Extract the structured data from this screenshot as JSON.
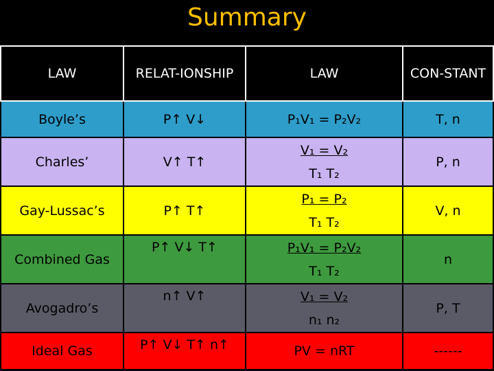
{
  "title": "Summary",
  "headers": [
    "LAW",
    "RELAT-IONSHIP",
    "LAW",
    "CON-STANT"
  ],
  "rows": [
    {
      "law": "Boyle’s",
      "relationship": "P↑ V↓",
      "equation": "P₁V₁ = P₂V₂",
      "constant": "T, n"
    },
    {
      "law": "Charles’",
      "relationship": "V↑ T↑",
      "equation_num": "V₁ = V₂",
      "equation_den": "T₁   T₂",
      "constant": "P, n"
    },
    {
      "law": "Gay-Lussac’s",
      "relationship": "P↑ T↑",
      "equation_num": "P₁ = P₂",
      "equation_den": "T₁   T₂",
      "constant": "V, n"
    },
    {
      "law": "Combined Gas",
      "relationship": "P↑ V↓ T↑",
      "equation_num": "P₁V₁ = P₂V₂",
      "equation_den": "T₁   T₂",
      "constant": "n"
    },
    {
      "law": "Avogadro’s",
      "relationship": "n↑ V↑",
      "equation_num": "V₁ = V₂",
      "equation_den": "n₁   n₂",
      "constant": "P, T"
    },
    {
      "law": "Ideal Gas",
      "relationship": "P↑ V↓ T↑ n↑",
      "equation": "PV = nRT",
      "constant": "------"
    }
  ],
  "colors": {
    "title": "#ffc000",
    "boyle": "#2e9dca",
    "charles": "#c9b3f0",
    "gay_lussac": "#ffff00",
    "combined": "#3e9a3e",
    "avogadro": "#5b5b68",
    "ideal": "#ff0000"
  }
}
